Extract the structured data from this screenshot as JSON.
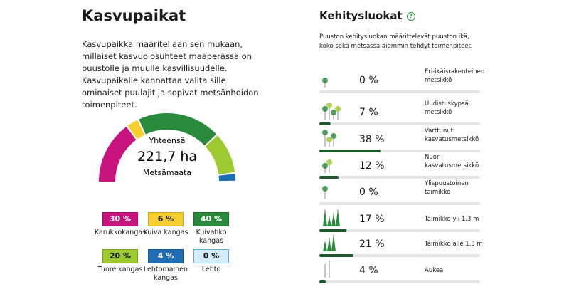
{
  "left": {
    "title": "Kasvupaikat",
    "description": "Kasvupaikka määritellään sen mukaan, millaiset kasvuolosuhteet maaperässä on puustolle ja muulle kasvillisuudelle. Kasvupaikalle kannattaa valita sille ominaiset puulajit ja sopivat metsänhoidon toimenpiteet."
  },
  "right": {
    "title": "Kehitysluokat",
    "help": "?",
    "description": "Puuston kehitysluokan määrittelevät puuston ikä, koko sekä metsässä aiemmin tehdyt toimenpiteet."
  },
  "chart_data": [
    {
      "type": "gauge",
      "center_label": "Yhteensä",
      "total": "221,7 ha",
      "unit_label": "Metsämaata",
      "categories": [
        "Karukkokangas",
        "Kuiva kangas",
        "Kuivahko kangas",
        "Tuore kangas",
        "Lehtomainen kangas",
        "Lehto"
      ],
      "values": [
        30,
        6,
        40,
        20,
        4,
        0
      ],
      "value_labels": [
        "30 %",
        "6 %",
        "40 %",
        "20 %",
        "4 %",
        "0 %"
      ],
      "colors": [
        "#c8137f",
        "#f6cf2e",
        "#2a8a3c",
        "#9dca31",
        "#1f6db3",
        "#d3ecf8"
      ]
    },
    {
      "type": "bar",
      "orientation": "horizontal",
      "categories": [
        "Eri-ikäisrakenteinen metsikkö",
        "Uudistuskypsä metsikkö",
        "Varttunut kasvatusmetsikkö",
        "Nuori kasvatusmetsikkö",
        "Ylispuustoinen taimikko",
        "Taimikko yli 1,3 m",
        "Taimikko alle 1,3 m",
        "Aukea"
      ],
      "values": [
        0,
        7,
        38,
        12,
        0,
        17,
        21,
        4
      ],
      "value_labels": [
        "0 %",
        "7 %",
        "38 %",
        "12 %",
        "0 %",
        "17 %",
        "21 %",
        "4 %"
      ],
      "color": "#1d5a2b",
      "track_color": "#e5e5e5",
      "xlim": [
        0,
        100
      ]
    }
  ]
}
